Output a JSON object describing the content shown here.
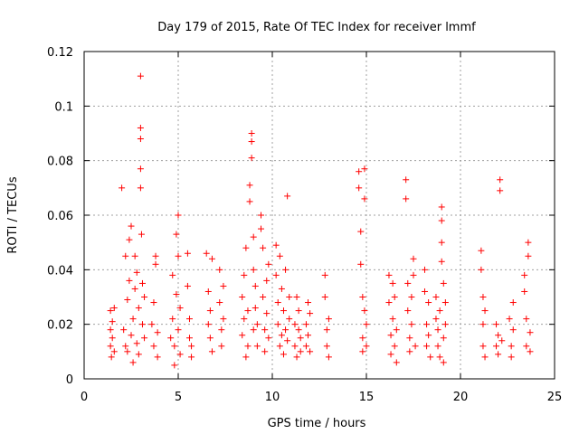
{
  "chart_data": {
    "type": "scatter",
    "title": "Day 179 of 2015, Rate Of TEC Index for receiver lmmf",
    "xlabel": "GPS time / hours",
    "ylabel": "ROTI / TECUs",
    "xlim": [
      0,
      25
    ],
    "ylim": [
      0,
      0.12
    ],
    "x_ticks": [
      0,
      5,
      10,
      15,
      20,
      25
    ],
    "y_ticks": [
      0,
      0.02,
      0.04,
      0.06,
      0.08,
      0.1,
      0.12
    ],
    "x_tick_labels": [
      "0",
      "5",
      "10",
      "15",
      "20",
      "25"
    ],
    "y_tick_labels": [
      "0",
      "0.02",
      "0.04",
      "0.06",
      "0.08",
      "0.1",
      "0.12"
    ],
    "grid": true,
    "marker": "plus",
    "marker_color": "#ff0000",
    "series": [
      {
        "name": "ROTI",
        "points": [
          [
            1.4,
            0.012
          ],
          [
            1.4,
            0.018
          ],
          [
            1.4,
            0.025
          ],
          [
            1.45,
            0.008
          ],
          [
            1.5,
            0.015
          ],
          [
            1.5,
            0.021
          ],
          [
            1.6,
            0.01
          ],
          [
            1.6,
            0.026
          ],
          [
            2.0,
            0.07
          ],
          [
            2.1,
            0.018
          ],
          [
            2.2,
            0.012
          ],
          [
            2.2,
            0.045
          ],
          [
            2.3,
            0.029
          ],
          [
            2.3,
            0.01
          ],
          [
            2.4,
            0.036
          ],
          [
            2.4,
            0.051
          ],
          [
            2.5,
            0.016
          ],
          [
            2.5,
            0.056
          ],
          [
            2.6,
            0.006
          ],
          [
            2.6,
            0.022
          ],
          [
            2.7,
            0.033
          ],
          [
            2.7,
            0.045
          ],
          [
            2.8,
            0.013
          ],
          [
            2.8,
            0.039
          ],
          [
            2.9,
            0.026
          ],
          [
            2.9,
            0.009
          ],
          [
            3.0,
            0.111
          ],
          [
            3.0,
            0.092
          ],
          [
            3.0,
            0.088
          ],
          [
            3.0,
            0.077
          ],
          [
            3.0,
            0.07
          ],
          [
            3.05,
            0.053
          ],
          [
            3.1,
            0.035
          ],
          [
            3.1,
            0.02
          ],
          [
            3.2,
            0.015
          ],
          [
            3.2,
            0.03
          ],
          [
            3.6,
            0.02
          ],
          [
            3.7,
            0.012
          ],
          [
            3.7,
            0.028
          ],
          [
            3.8,
            0.045
          ],
          [
            3.8,
            0.042
          ],
          [
            3.9,
            0.008
          ],
          [
            3.9,
            0.017
          ],
          [
            4.6,
            0.015
          ],
          [
            4.7,
            0.022
          ],
          [
            4.7,
            0.038
          ],
          [
            4.8,
            0.005
          ],
          [
            4.8,
            0.012
          ],
          [
            4.9,
            0.031
          ],
          [
            4.9,
            0.053
          ],
          [
            5.0,
            0.06
          ],
          [
            5.0,
            0.045
          ],
          [
            5.0,
            0.018
          ],
          [
            5.1,
            0.026
          ],
          [
            5.1,
            0.009
          ],
          [
            5.5,
            0.046
          ],
          [
            5.5,
            0.034
          ],
          [
            5.6,
            0.015
          ],
          [
            5.6,
            0.022
          ],
          [
            5.7,
            0.008
          ],
          [
            5.7,
            0.012
          ],
          [
            6.5,
            0.046
          ],
          [
            6.6,
            0.032
          ],
          [
            6.6,
            0.02
          ],
          [
            6.7,
            0.015
          ],
          [
            6.7,
            0.025
          ],
          [
            6.8,
            0.01
          ],
          [
            6.8,
            0.044
          ],
          [
            7.2,
            0.04
          ],
          [
            7.2,
            0.028
          ],
          [
            7.3,
            0.018
          ],
          [
            7.3,
            0.012
          ],
          [
            7.4,
            0.022
          ],
          [
            7.4,
            0.034
          ],
          [
            8.4,
            0.016
          ],
          [
            8.4,
            0.03
          ],
          [
            8.5,
            0.022
          ],
          [
            8.5,
            0.038
          ],
          [
            8.6,
            0.008
          ],
          [
            8.6,
            0.048
          ],
          [
            8.7,
            0.025
          ],
          [
            8.7,
            0.012
          ],
          [
            8.8,
            0.071
          ],
          [
            8.8,
            0.065
          ],
          [
            8.9,
            0.09
          ],
          [
            8.9,
            0.087
          ],
          [
            8.9,
            0.081
          ],
          [
            9.0,
            0.052
          ],
          [
            9.0,
            0.04
          ],
          [
            9.0,
            0.018
          ],
          [
            9.1,
            0.026
          ],
          [
            9.1,
            0.034
          ],
          [
            9.2,
            0.012
          ],
          [
            9.2,
            0.02
          ],
          [
            9.4,
            0.06
          ],
          [
            9.4,
            0.055
          ],
          [
            9.5,
            0.048
          ],
          [
            9.5,
            0.03
          ],
          [
            9.6,
            0.018
          ],
          [
            9.6,
            0.01
          ],
          [
            9.7,
            0.036
          ],
          [
            9.7,
            0.024
          ],
          [
            9.8,
            0.015
          ],
          [
            9.8,
            0.042
          ],
          [
            10.2,
            0.049
          ],
          [
            10.2,
            0.038
          ],
          [
            10.3,
            0.028
          ],
          [
            10.3,
            0.02
          ],
          [
            10.4,
            0.012
          ],
          [
            10.4,
            0.045
          ],
          [
            10.5,
            0.033
          ],
          [
            10.5,
            0.016
          ],
          [
            10.6,
            0.009
          ],
          [
            10.6,
            0.025
          ],
          [
            10.7,
            0.018
          ],
          [
            10.7,
            0.04
          ],
          [
            10.8,
            0.067
          ],
          [
            10.8,
            0.014
          ],
          [
            10.9,
            0.022
          ],
          [
            10.9,
            0.03
          ],
          [
            11.2,
            0.02
          ],
          [
            11.2,
            0.012
          ],
          [
            11.3,
            0.03
          ],
          [
            11.3,
            0.008
          ],
          [
            11.4,
            0.018
          ],
          [
            11.4,
            0.025
          ],
          [
            11.5,
            0.015
          ],
          [
            11.5,
            0.01
          ],
          [
            11.8,
            0.012
          ],
          [
            11.8,
            0.02
          ],
          [
            11.9,
            0.028
          ],
          [
            11.9,
            0.016
          ],
          [
            12.0,
            0.01
          ],
          [
            12.0,
            0.024
          ],
          [
            12.8,
            0.038
          ],
          [
            12.8,
            0.03
          ],
          [
            12.9,
            0.018
          ],
          [
            12.9,
            0.012
          ],
          [
            13.0,
            0.022
          ],
          [
            13.0,
            0.008
          ],
          [
            14.6,
            0.076
          ],
          [
            14.6,
            0.07
          ],
          [
            14.7,
            0.054
          ],
          [
            14.7,
            0.042
          ],
          [
            14.8,
            0.03
          ],
          [
            14.8,
            0.015
          ],
          [
            14.8,
            0.01
          ],
          [
            14.9,
            0.025
          ],
          [
            14.9,
            0.077
          ],
          [
            14.9,
            0.066
          ],
          [
            15.0,
            0.02
          ],
          [
            15.0,
            0.012
          ],
          [
            16.2,
            0.038
          ],
          [
            16.2,
            0.028
          ],
          [
            16.3,
            0.016
          ],
          [
            16.3,
            0.009
          ],
          [
            16.4,
            0.022
          ],
          [
            16.4,
            0.035
          ],
          [
            16.5,
            0.012
          ],
          [
            16.5,
            0.03
          ],
          [
            16.6,
            0.006
          ],
          [
            16.6,
            0.018
          ],
          [
            17.1,
            0.073
          ],
          [
            17.1,
            0.066
          ],
          [
            17.2,
            0.035
          ],
          [
            17.2,
            0.025
          ],
          [
            17.3,
            0.015
          ],
          [
            17.3,
            0.01
          ],
          [
            17.4,
            0.02
          ],
          [
            17.4,
            0.03
          ],
          [
            17.5,
            0.044
          ],
          [
            17.5,
            0.038
          ],
          [
            17.6,
            0.012
          ],
          [
            18.1,
            0.04
          ],
          [
            18.1,
            0.032
          ],
          [
            18.2,
            0.02
          ],
          [
            18.2,
            0.012
          ],
          [
            18.3,
            0.028
          ],
          [
            18.3,
            0.016
          ],
          [
            18.4,
            0.008
          ],
          [
            18.7,
            0.022
          ],
          [
            18.7,
            0.03
          ],
          [
            18.8,
            0.012
          ],
          [
            18.8,
            0.018
          ],
          [
            18.9,
            0.025
          ],
          [
            18.9,
            0.008
          ],
          [
            19.0,
            0.063
          ],
          [
            19.0,
            0.058
          ],
          [
            19.0,
            0.05
          ],
          [
            19.0,
            0.043
          ],
          [
            19.1,
            0.035
          ],
          [
            19.1,
            0.015
          ],
          [
            19.1,
            0.006
          ],
          [
            19.2,
            0.02
          ],
          [
            19.2,
            0.028
          ],
          [
            21.1,
            0.047
          ],
          [
            21.1,
            0.04
          ],
          [
            21.2,
            0.03
          ],
          [
            21.2,
            0.02
          ],
          [
            21.2,
            0.012
          ],
          [
            21.3,
            0.008
          ],
          [
            21.3,
            0.025
          ],
          [
            21.9,
            0.02
          ],
          [
            21.9,
            0.012
          ],
          [
            22.0,
            0.016
          ],
          [
            22.0,
            0.009
          ],
          [
            22.1,
            0.073
          ],
          [
            22.1,
            0.069
          ],
          [
            22.2,
            0.014
          ],
          [
            22.6,
            0.022
          ],
          [
            22.7,
            0.012
          ],
          [
            22.7,
            0.008
          ],
          [
            22.8,
            0.018
          ],
          [
            22.8,
            0.028
          ],
          [
            23.4,
            0.038
          ],
          [
            23.4,
            0.032
          ],
          [
            23.5,
            0.022
          ],
          [
            23.5,
            0.012
          ],
          [
            23.6,
            0.05
          ],
          [
            23.6,
            0.045
          ],
          [
            23.7,
            0.01
          ],
          [
            23.7,
            0.017
          ]
        ]
      }
    ]
  }
}
